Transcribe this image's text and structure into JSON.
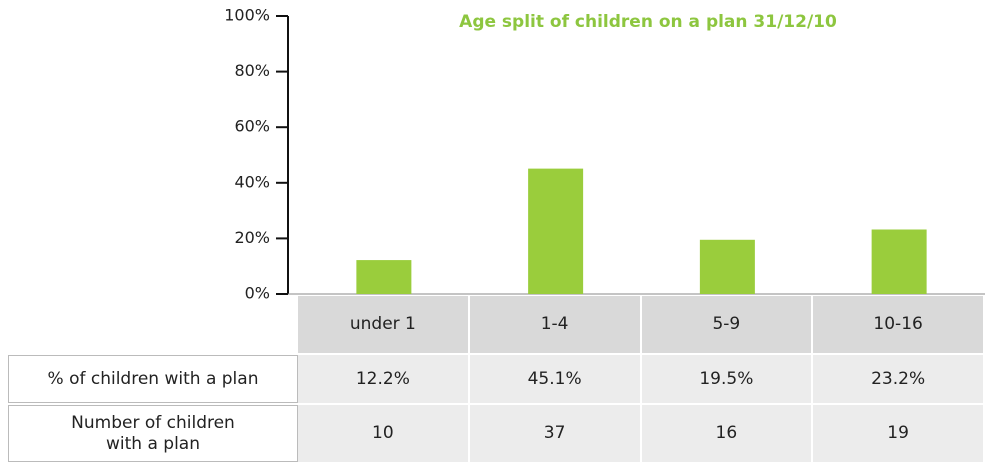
{
  "chart_data": {
    "type": "bar",
    "title": "Age split of children on a plan 31/12/10",
    "categories": [
      "under 1",
      "1-4",
      "5-9",
      "10-16"
    ],
    "series": [
      {
        "name": "% of children with a plan",
        "color": "#9acd3c",
        "values": [
          12.2,
          45.1,
          19.5,
          23.2
        ],
        "value_labels": [
          "12.2%",
          "45.1%",
          "19.5%",
          "23.2%"
        ]
      }
    ],
    "table_rows": [
      {
        "name": "Number of children with a plan",
        "values": [
          10,
          37,
          16,
          19
        ]
      }
    ],
    "ylim": [
      0,
      100
    ],
    "yticks": [
      {
        "value": 0,
        "label": "0%"
      },
      {
        "value": 20,
        "label": "20%"
      },
      {
        "value": 40,
        "label": "40%"
      },
      {
        "value": 60,
        "label": "60%"
      },
      {
        "value": 80,
        "label": "80%"
      },
      {
        "value": 100,
        "label": "100%"
      }
    ]
  }
}
